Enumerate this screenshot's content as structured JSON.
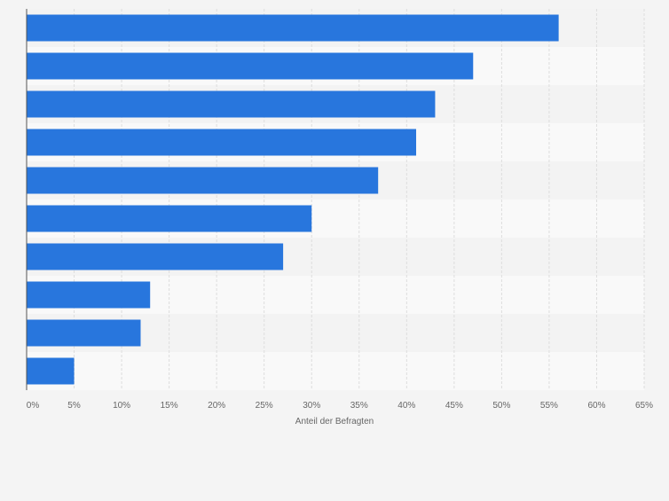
{
  "chart_data": {
    "type": "bar",
    "orientation": "horizontal",
    "categories": [
      "",
      "",
      "",
      "",
      "",
      "",
      "",
      "",
      "",
      ""
    ],
    "values": [
      56,
      47,
      43,
      41,
      37,
      30,
      27,
      13,
      12,
      5
    ],
    "xlabel": "Anteil der Befragten",
    "ylabel": "",
    "xlim": [
      0,
      65
    ],
    "x_ticks": [
      "0%",
      "5%",
      "10%",
      "15%",
      "20%",
      "25%",
      "30%",
      "35%",
      "40%",
      "45%",
      "50%",
      "55%",
      "60%",
      "65%"
    ],
    "grid": true,
    "legend": "none",
    "colors": {
      "bar": "#2876dd",
      "background": "#f4f4f4",
      "band_light": "#f9f9f9",
      "band_dark": "#f3f3f3",
      "grid": "#dddddd",
      "axis": "#555555",
      "tick_text": "#666666"
    }
  }
}
